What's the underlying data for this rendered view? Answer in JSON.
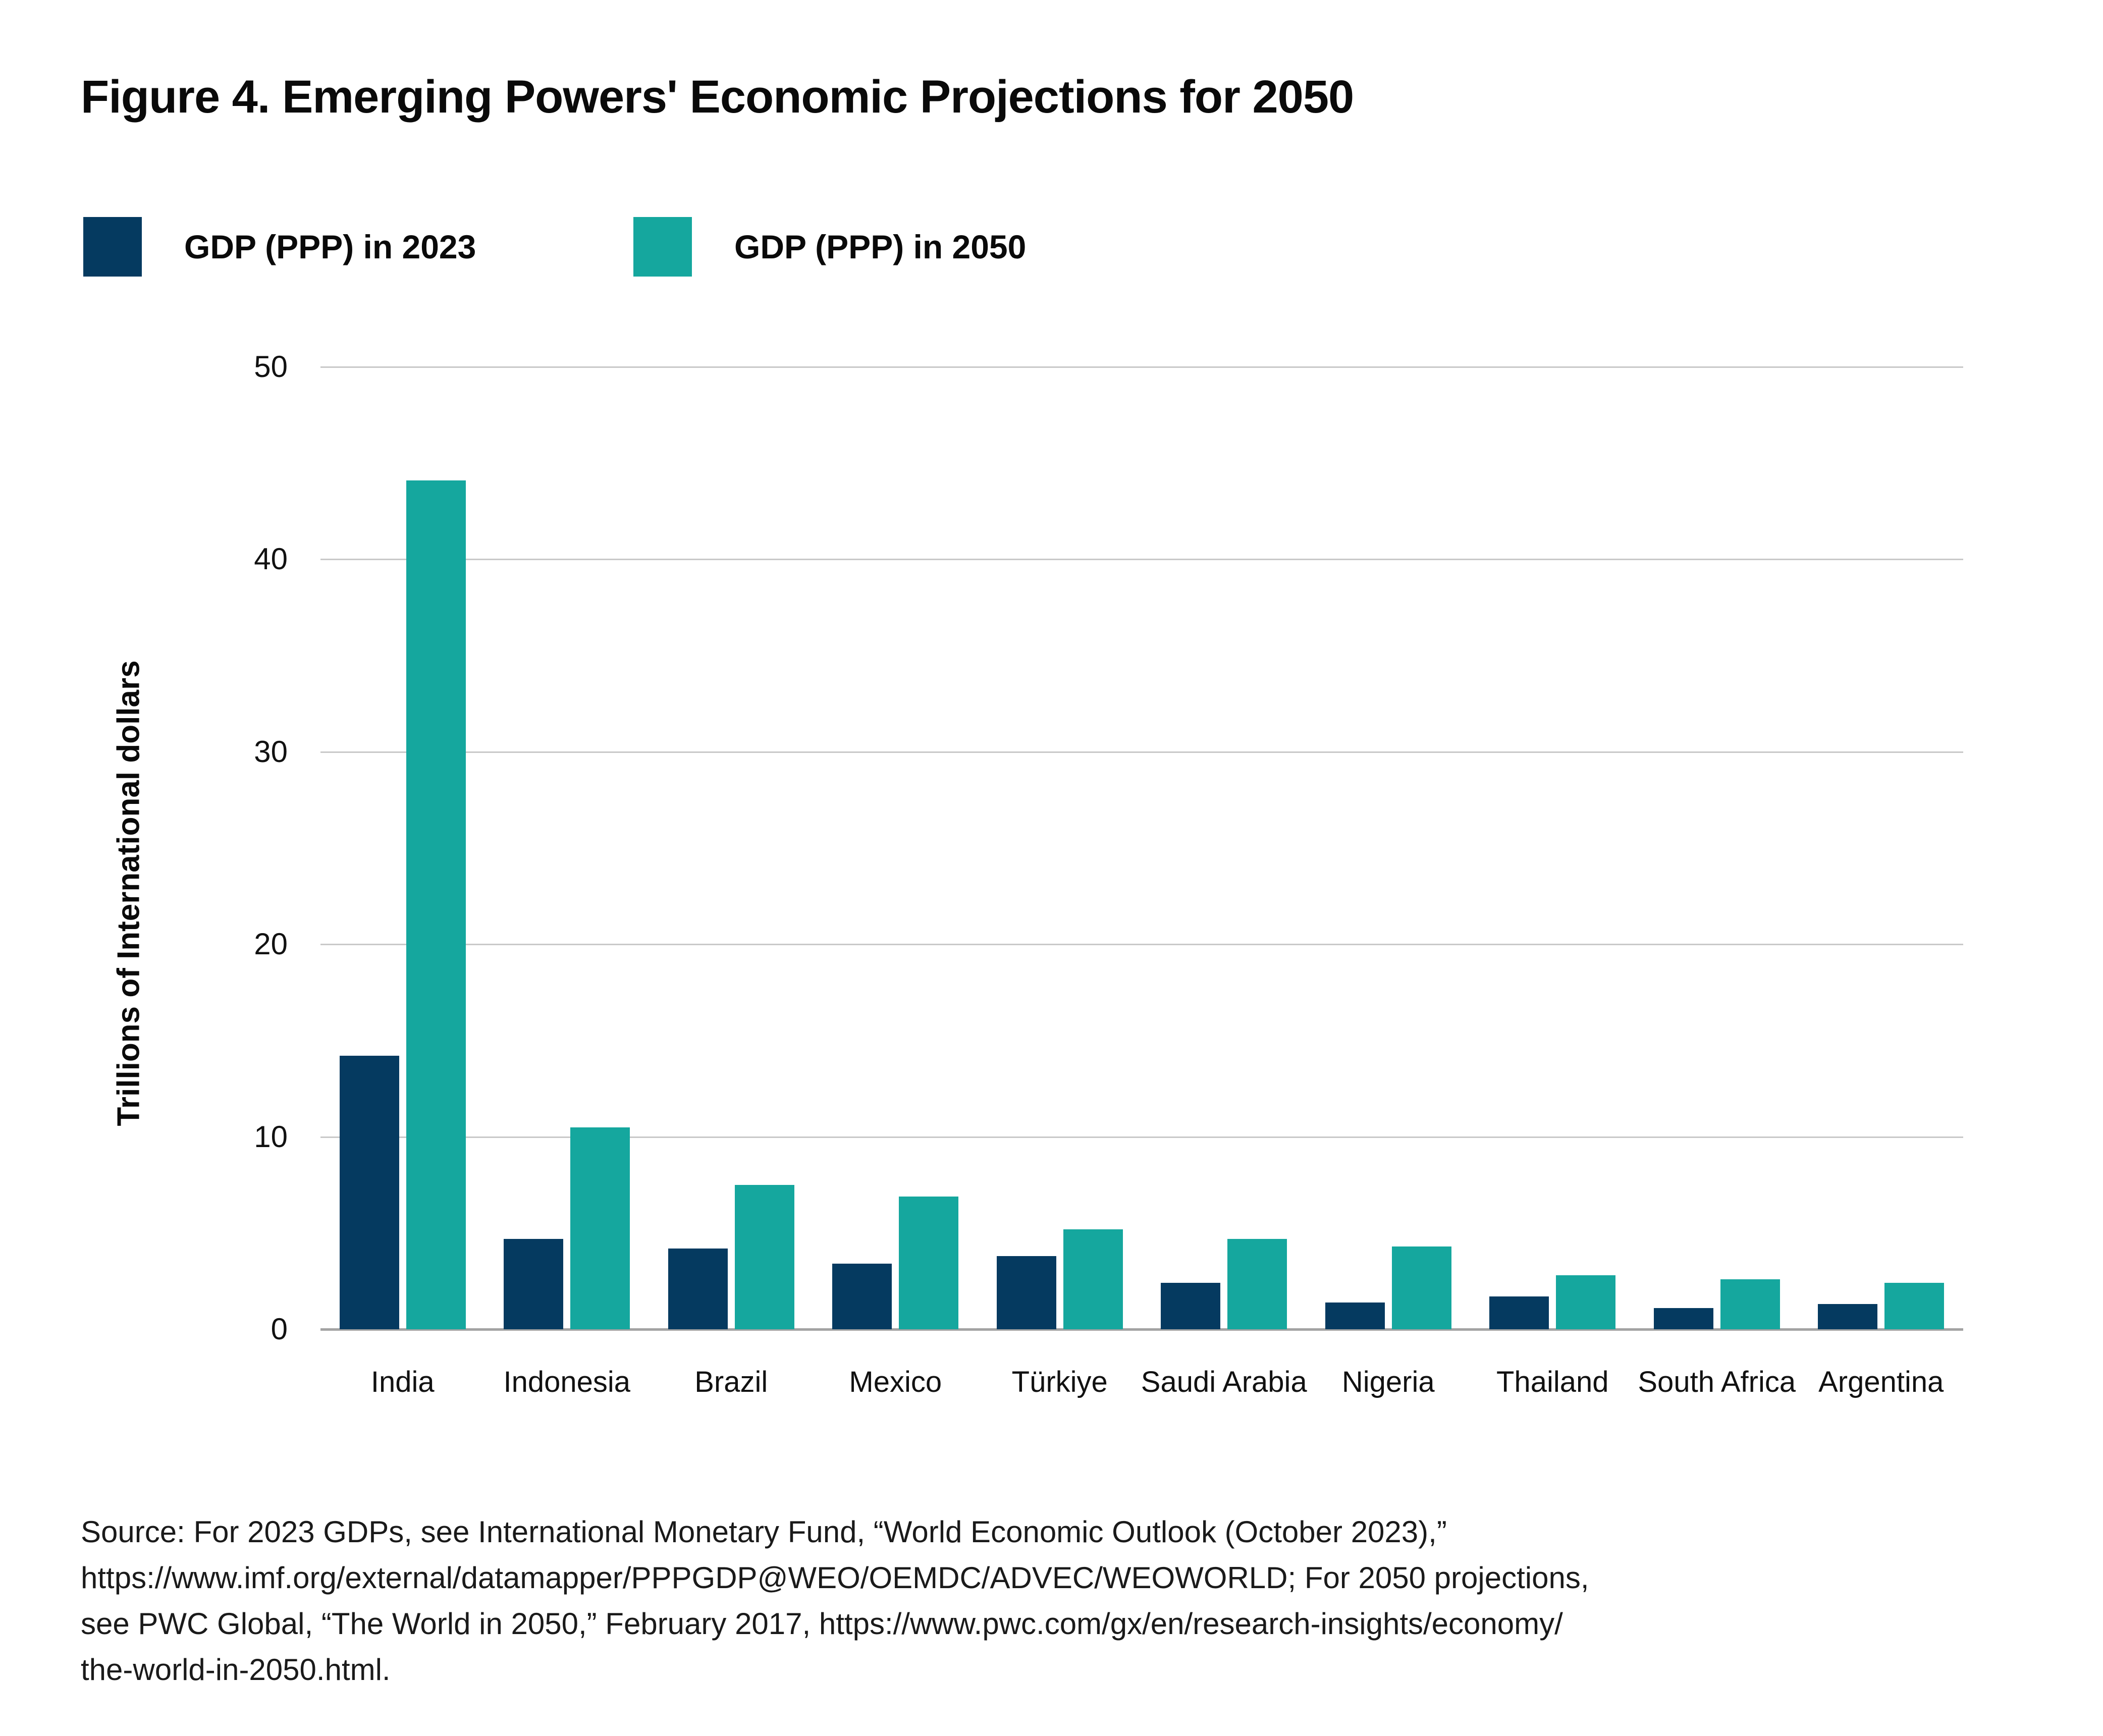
{
  "figure": {
    "title": "Figure 4. Emerging Powers' Economic Projections for 2050",
    "source_lines": [
      "Source: For 2023 GDPs, see International Monetary Fund, “World Economic Outlook (October 2023),”",
      "https://www.imf.org/external/datamapper/PPPGDP@WEO/OEMDC/ADVEC/WEOWORLD; For 2050 projections,",
      "see PWC Global, “The World in 2050,” February 2017, https://www.pwc.com/gx/en/research-insights/economy/",
      "the-world-in-2050.html."
    ]
  },
  "chart_data": {
    "type": "bar",
    "title": "Figure 4. Emerging Powers' Economic Projections for 2050",
    "categories": [
      "India",
      "Indonesia",
      "Brazil",
      "Mexico",
      "Türkiye",
      "Saudi Arabia",
      "Nigeria",
      "Thailand",
      "South Africa",
      "Argentina"
    ],
    "series": [
      {
        "name": "GDP (PPP) in 2023",
        "color": "#053a60",
        "values": [
          14.2,
          4.7,
          4.2,
          3.4,
          3.8,
          2.4,
          1.4,
          1.7,
          1.1,
          1.3
        ]
      },
      {
        "name": "GDP (PPP) in 2050",
        "color": "#15a79e",
        "values": [
          44.1,
          10.5,
          7.5,
          6.9,
          5.2,
          4.7,
          4.3,
          2.8,
          2.6,
          2.4
        ]
      }
    ],
    "xlabel": "",
    "ylabel": "Trillions of International dollars",
    "ylim": [
      0,
      50
    ],
    "yticks": [
      0,
      10,
      20,
      30,
      40,
      50
    ],
    "grid": true,
    "gridline_color": "#c9c9c9",
    "baseline_color": "#a3a3a3",
    "legend_position": "top-left"
  }
}
